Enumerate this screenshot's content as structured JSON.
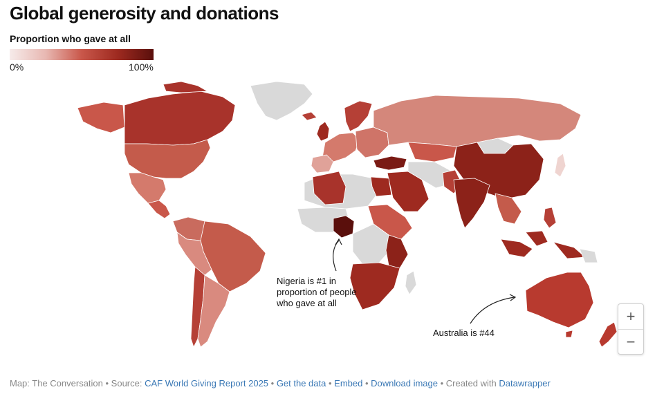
{
  "header": {
    "title": "Global generosity and donations"
  },
  "legend": {
    "title": "Proportion who gave at all",
    "min_label": "0%",
    "max_label": "100%",
    "colors": [
      "#f6ebea",
      "#e8b8b2",
      "#c9574a",
      "#9e2a20",
      "#5a0f0c"
    ],
    "no_data_color": "#d9d9d9"
  },
  "annotations": {
    "nigeria": "Nigeria is #1 in proportion of people who gave at all",
    "australia": "Australia is #44"
  },
  "zoom": {
    "in_label": "+",
    "out_label": "−"
  },
  "footer": {
    "prefix": "Map: The Conversation • Source: ",
    "source_link": "CAF World Giving Report 2025",
    "sep1": " • ",
    "get_data_link": "Get the data",
    "sep2": " • ",
    "embed_link": "Embed",
    "sep3": "  • ",
    "download_link": "Download image",
    "sep4": " • Created with ",
    "datawrapper_link": "Datawrapper"
  }
}
